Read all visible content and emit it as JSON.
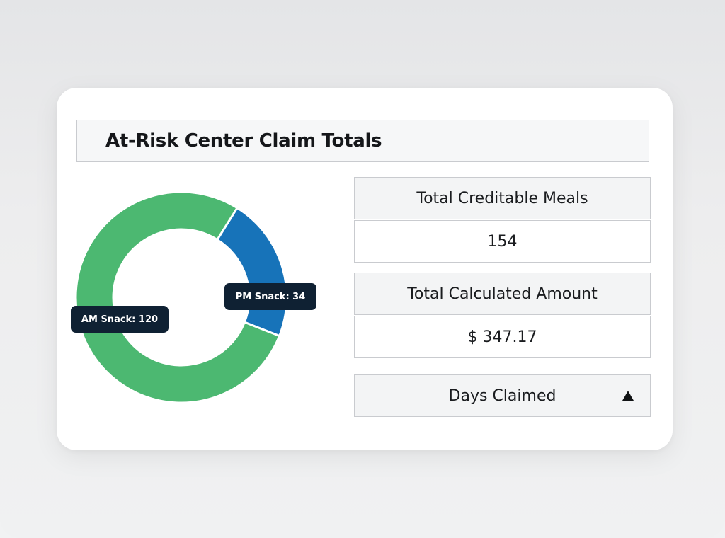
{
  "panel": {
    "title": "At-Risk Center Claim Totals"
  },
  "stats": {
    "meals_label": "Total Creditable Meals",
    "meals_value": "154",
    "amount_label": "Total Calculated Amount",
    "amount_value": "$ 347.17",
    "days_label": "Days Claimed",
    "days_toggle_icon": "triangle-up-icon"
  },
  "chart_data": {
    "type": "pie",
    "donut": true,
    "categories": [
      "AM Snack",
      "PM Snack"
    ],
    "values": [
      120,
      34
    ],
    "colors": [
      "#4cb871",
      "#1773b9"
    ],
    "labels": [
      "AM Snack: 120",
      "PM Snack: 34"
    ]
  }
}
